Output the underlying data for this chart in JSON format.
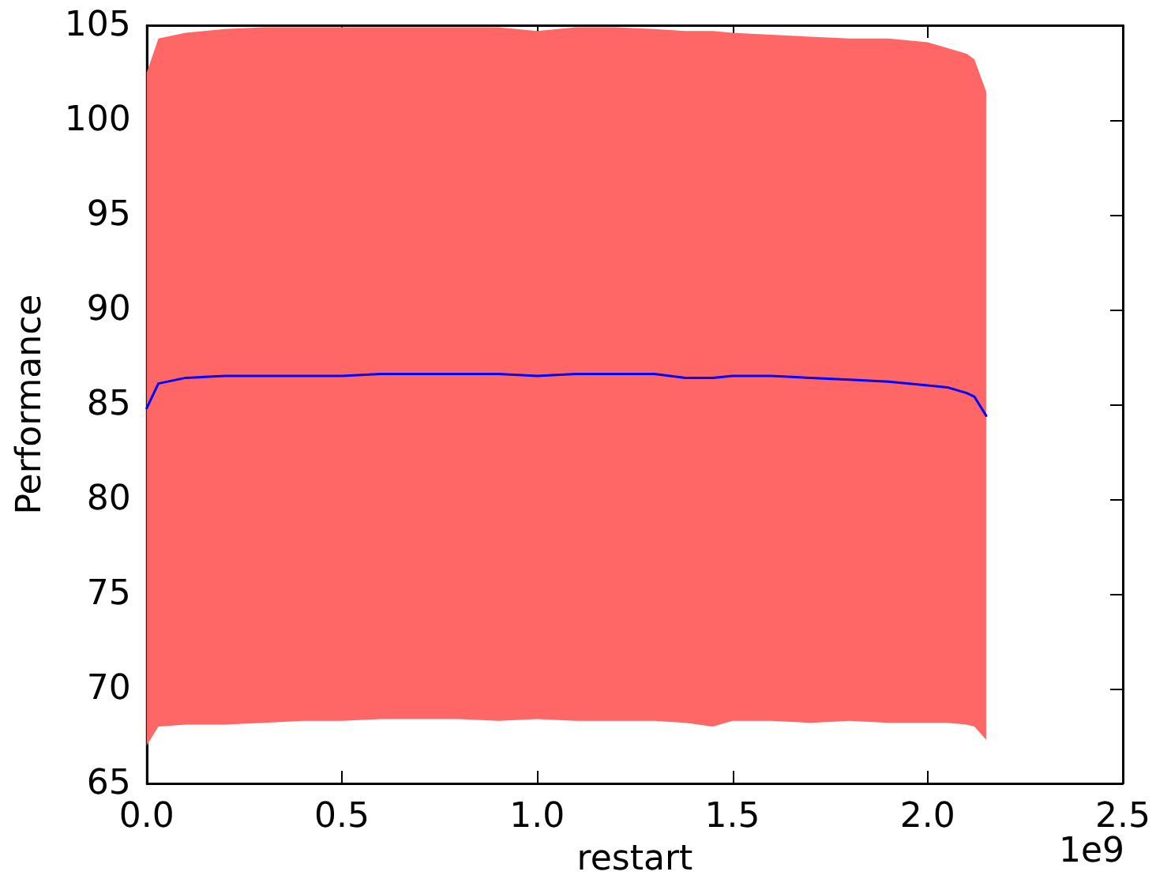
{
  "chart_data": {
    "type": "line",
    "xlabel": "restart",
    "ylabel": "Performance",
    "annotations": [
      "1e9"
    ],
    "xlim": [
      0,
      2.5
    ],
    "ylim": [
      65,
      105
    ],
    "xticks": [
      {
        "value": 0,
        "label": "0.0"
      },
      {
        "value": 0.5,
        "label": "0.5"
      },
      {
        "value": 1,
        "label": "1.0"
      },
      {
        "value": 1.5,
        "label": "1.5"
      },
      {
        "value": 2,
        "label": "2.0"
      },
      {
        "value": 2.5,
        "label": "2.5"
      }
    ],
    "yticks": [
      65,
      70,
      75,
      80,
      85,
      90,
      95,
      100,
      105
    ],
    "grid": false,
    "marker": "none",
    "line_style": "solid",
    "series": [
      {
        "color": "#0000ff",
        "x": [
          0,
          0.03,
          0.1,
          0.2,
          0.3,
          0.4,
          0.5,
          0.6,
          0.7,
          0.8,
          0.9,
          1.0,
          1.1,
          1.2,
          1.3,
          1.38,
          1.45,
          1.5,
          1.6,
          1.7,
          1.8,
          1.9,
          2.0,
          2.05,
          2.1,
          2.12,
          2.15
        ],
        "values": [
          84.8,
          86.1,
          86.4,
          86.5,
          86.5,
          86.5,
          86.5,
          86.6,
          86.6,
          86.6,
          86.6,
          86.5,
          86.6,
          86.6,
          86.6,
          86.4,
          86.4,
          86.5,
          86.5,
          86.4,
          86.3,
          86.2,
          86.0,
          85.9,
          85.6,
          85.4,
          84.4
        ],
        "lower": [
          67.0,
          68.0,
          68.1,
          68.1,
          68.2,
          68.3,
          68.3,
          68.4,
          68.4,
          68.4,
          68.3,
          68.4,
          68.3,
          68.3,
          68.3,
          68.2,
          68.0,
          68.3,
          68.3,
          68.2,
          68.3,
          68.2,
          68.2,
          68.2,
          68.1,
          68.0,
          67.3
        ],
        "upper": [
          102.5,
          104.3,
          104.6,
          104.8,
          104.9,
          104.9,
          104.9,
          104.9,
          104.9,
          104.9,
          104.9,
          104.7,
          104.9,
          104.9,
          104.8,
          104.7,
          104.7,
          104.6,
          104.5,
          104.4,
          104.3,
          104.3,
          104.1,
          103.8,
          103.5,
          103.2,
          101.5
        ]
      }
    ]
  }
}
